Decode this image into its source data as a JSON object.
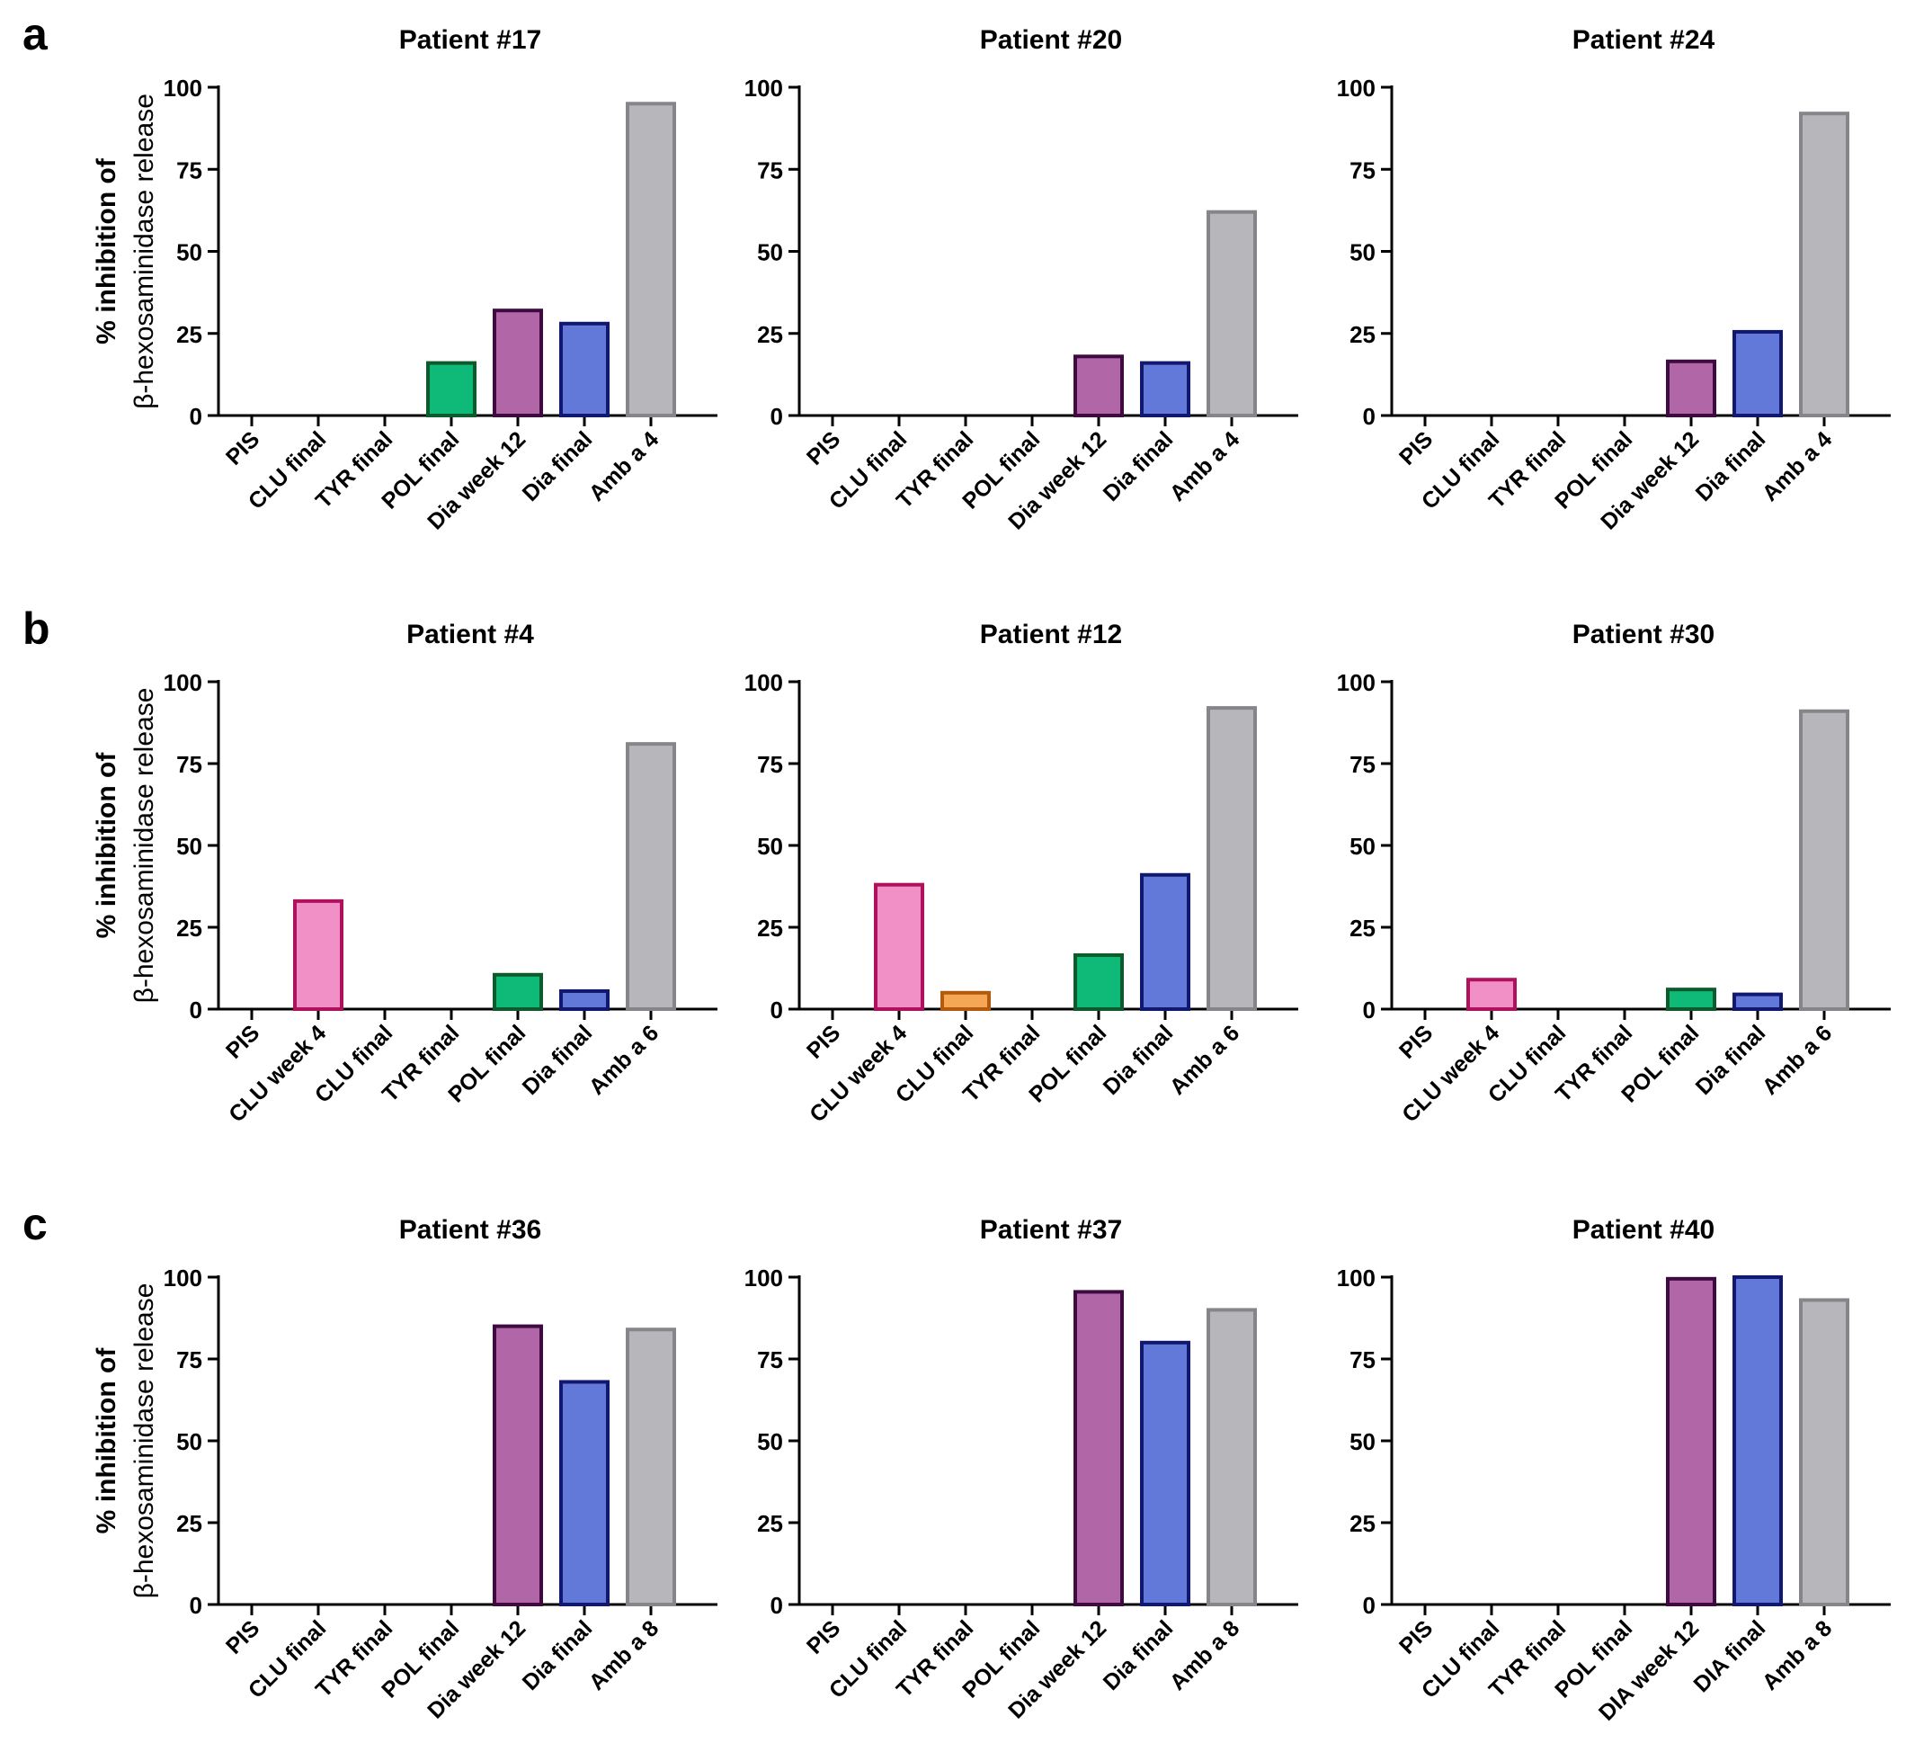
{
  "figure": {
    "ylabel_line1": "% inhibition of",
    "ylabel_line2": "β-hexosaminidase release"
  },
  "colors": {
    "PIS": {
      "fill": "#ffffff",
      "stroke": "#000000"
    },
    "CLU week 4": {
      "fill": "#f190c6",
      "stroke": "#b0115e"
    },
    "CLU final": {
      "fill": "#f5a755",
      "stroke": "#b45a0c"
    },
    "TYR final": {
      "fill": "#ffffff",
      "stroke": "#000000"
    },
    "POL final": {
      "fill": "#0fba78",
      "stroke": "#0d5a2c"
    },
    "Dia week 12": {
      "fill": "#b166a8",
      "stroke": "#3e0a40"
    },
    "DIA week 12": {
      "fill": "#b166a8",
      "stroke": "#3e0a40"
    },
    "Dia final": {
      "fill": "#6379d9",
      "stroke": "#111870"
    },
    "DIA final": {
      "fill": "#6379d9",
      "stroke": "#111870"
    },
    "Amb": {
      "fill": "#b7b7bb",
      "stroke": "#86868a"
    }
  },
  "chart_data": [
    {
      "panel": "a",
      "type": "bar",
      "title": "Patient #17",
      "ylabel": "% inhibition of β-hexosaminidase release",
      "ylim": [
        0,
        100
      ],
      "yticks": [
        0,
        25,
        50,
        75,
        100
      ],
      "categories": [
        "PIS",
        "CLU final",
        "TYR final",
        "POL final",
        "Dia week 12",
        "Dia final",
        "Amb a 4"
      ],
      "values": [
        0,
        0,
        0,
        16,
        32,
        28,
        95
      ]
    },
    {
      "panel": "",
      "type": "bar",
      "title": "Patient #20",
      "ylim": [
        0,
        100
      ],
      "yticks": [
        0,
        25,
        50,
        75,
        100
      ],
      "categories": [
        "PIS",
        "CLU final",
        "TYR final",
        "POL final",
        "Dia week 12",
        "Dia final",
        "Amb a 4"
      ],
      "values": [
        0,
        0,
        0,
        0,
        18,
        16,
        62
      ]
    },
    {
      "panel": "",
      "type": "bar",
      "title": "Patient #24",
      "ylim": [
        0,
        100
      ],
      "yticks": [
        0,
        25,
        50,
        75,
        100
      ],
      "categories": [
        "PIS",
        "CLU final",
        "TYR final",
        "POL final",
        "Dia week 12",
        "Dia final",
        "Amb a 4"
      ],
      "values": [
        0,
        0,
        0,
        0,
        16.5,
        25.5,
        92
      ]
    },
    {
      "panel": "b",
      "type": "bar",
      "title": "Patient #4",
      "ylabel": "% inhibition of β-hexosaminidase release",
      "ylim": [
        0,
        100
      ],
      "yticks": [
        0,
        25,
        50,
        75,
        100
      ],
      "categories": [
        "PIS",
        "CLU week 4",
        "CLU final",
        "TYR final",
        "POL final",
        "Dia final",
        "Amb a 6"
      ],
      "values": [
        0,
        33,
        0,
        0,
        10.5,
        5.5,
        81
      ]
    },
    {
      "panel": "",
      "type": "bar",
      "title": "Patient #12",
      "ylim": [
        0,
        100
      ],
      "yticks": [
        0,
        25,
        50,
        75,
        100
      ],
      "categories": [
        "PIS",
        "CLU week 4",
        "CLU final",
        "TYR final",
        "POL final",
        "Dia final",
        "Amb a 6"
      ],
      "values": [
        0,
        38,
        5,
        0,
        16.5,
        41,
        92
      ]
    },
    {
      "panel": "",
      "type": "bar",
      "title": "Patient #30",
      "ylim": [
        0,
        100
      ],
      "yticks": [
        0,
        25,
        50,
        75,
        100
      ],
      "categories": [
        "PIS",
        "CLU week 4",
        "CLU final",
        "TYR final",
        "POL final",
        "Dia final",
        "Amb a 6"
      ],
      "values": [
        0,
        9,
        0,
        0,
        6,
        4.5,
        91
      ]
    },
    {
      "panel": "c",
      "type": "bar",
      "title": "Patient #36",
      "ylabel": "% inhibition of β-hexosaminidase release",
      "ylim": [
        0,
        100
      ],
      "yticks": [
        0,
        25,
        50,
        75,
        100
      ],
      "categories": [
        "PIS",
        "CLU final",
        "TYR final",
        "POL final",
        "Dia week 12",
        "Dia final",
        "Amb a 8"
      ],
      "values": [
        0,
        0,
        0,
        0,
        85,
        68,
        84
      ]
    },
    {
      "panel": "",
      "type": "bar",
      "title": "Patient #37",
      "ylim": [
        0,
        100
      ],
      "yticks": [
        0,
        25,
        50,
        75,
        100
      ],
      "categories": [
        "PIS",
        "CLU final",
        "TYR final",
        "POL final",
        "Dia week 12",
        "Dia final",
        "Amb a 8"
      ],
      "values": [
        0,
        0,
        0,
        0,
        95.5,
        80,
        90
      ]
    },
    {
      "panel": "",
      "type": "bar",
      "title": "Patient #40",
      "ylim": [
        0,
        100
      ],
      "yticks": [
        0,
        25,
        50,
        75,
        100
      ],
      "categories": [
        "PIS",
        "CLU final",
        "TYR final",
        "POL final",
        "DIA week 12",
        "DIA final",
        "Amb a 8"
      ],
      "values": [
        0,
        0,
        0,
        0,
        99.5,
        100,
        93
      ]
    }
  ]
}
